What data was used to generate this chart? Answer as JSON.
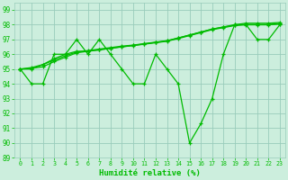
{
  "xlabel": "Humidité relative (%)",
  "bg_color": "#cceedd",
  "grid_color": "#99ccbb",
  "line_color": "#00bb00",
  "xlim": [
    -0.5,
    23.5
  ],
  "ylim": [
    89,
    99.5
  ],
  "yticks": [
    89,
    90,
    91,
    92,
    93,
    94,
    95,
    96,
    97,
    98,
    99
  ],
  "xticks": [
    0,
    1,
    2,
    3,
    4,
    5,
    6,
    7,
    8,
    9,
    10,
    11,
    12,
    13,
    14,
    15,
    16,
    17,
    18,
    19,
    20,
    21,
    22,
    23
  ],
  "series": [
    [
      95.0,
      94.0,
      94.0,
      96.0,
      96.0,
      97.0,
      96.0,
      97.0,
      96.0,
      95.0,
      94.0,
      94.0,
      96.0,
      95.0,
      94.0,
      90.0,
      91.3,
      93.0,
      96.0,
      98.0,
      98.0,
      97.0,
      97.0,
      98.0
    ],
    [
      95.0,
      95.0,
      95.3,
      95.7,
      96.0,
      96.2,
      96.2,
      96.3,
      96.4,
      96.5,
      96.6,
      96.7,
      96.8,
      96.9,
      97.1,
      97.3,
      97.5,
      97.7,
      97.85,
      98.0,
      98.1,
      98.1,
      98.1,
      98.15
    ],
    [
      95.0,
      95.1,
      95.3,
      95.6,
      95.9,
      96.15,
      96.25,
      96.35,
      96.45,
      96.55,
      96.62,
      96.72,
      96.82,
      96.92,
      97.1,
      97.3,
      97.5,
      97.7,
      97.83,
      97.97,
      98.02,
      98.02,
      98.02,
      98.07
    ],
    [
      95.0,
      95.05,
      95.15,
      95.5,
      95.8,
      96.1,
      96.2,
      96.3,
      96.4,
      96.5,
      96.58,
      96.68,
      96.78,
      96.88,
      97.06,
      97.26,
      97.46,
      97.66,
      97.8,
      97.94,
      97.99,
      97.99,
      97.99,
      98.04
    ]
  ]
}
